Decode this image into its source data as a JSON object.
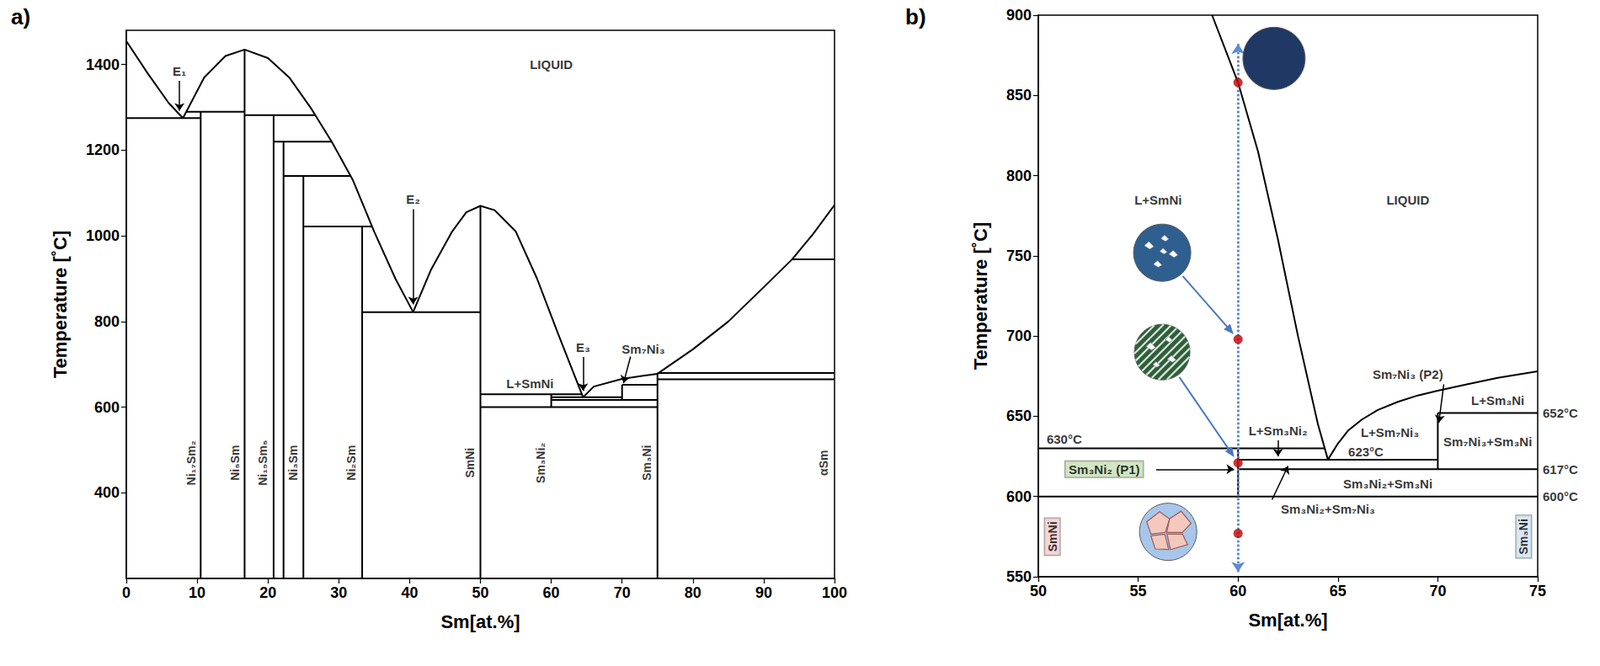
{
  "chart_data": [
    {
      "type": "line",
      "title": "a)",
      "x_label": "Sm[at.%]",
      "y_label": "Temperature [˚C]",
      "xlim": [
        0,
        100
      ],
      "ylim": [
        200,
        1480
      ],
      "xticks": [
        0,
        10,
        20,
        30,
        40,
        50,
        60,
        70,
        80,
        90,
        100
      ],
      "yticks": [
        400,
        600,
        800,
        1000,
        1200,
        1400
      ],
      "grid": false,
      "series": [
        {
          "type": "line",
          "color": "#000000",
          "x": [
            0,
            3,
            6,
            8,
            11,
            14,
            16.7,
            20,
            23,
            26,
            29,
            32,
            35,
            38,
            40.5,
            43,
            46,
            48,
            50,
            52,
            55,
            58,
            61,
            64.5,
            66,
            70,
            75,
            80,
            85,
            90,
            94,
            97,
            100
          ],
          "values": [
            1455,
            1380,
            1310,
            1275,
            1370,
            1420,
            1435,
            1415,
            1370,
            1300,
            1220,
            1130,
            1010,
            900,
            822,
            920,
            1010,
            1055,
            1070,
            1060,
            1010,
            900,
            770,
            623,
            648,
            666,
            678,
            735,
            800,
            880,
            945,
            1005,
            1072
          ]
        },
        {
          "type": "line",
          "color": "#000000",
          "x": [
            0,
            10.5,
            null,
            8.5,
            16.7,
            null,
            16.7,
            26.7,
            null,
            20.8,
            29,
            null,
            22.2,
            31.7,
            null,
            25,
            34.7,
            null,
            33.3,
            50,
            null,
            50,
            64.3,
            null,
            60,
            70,
            null,
            60,
            75,
            null,
            70,
            75,
            null,
            50,
            75,
            null,
            75,
            100,
            null,
            75,
            100,
            null,
            94,
            100,
            null,
            10.5,
            10.5,
            null,
            16.7,
            16.7,
            null,
            20.8,
            20.8,
            null,
            22.2,
            22.2,
            null,
            25,
            25,
            null,
            33.3,
            33.3,
            null,
            50,
            50,
            null,
            60,
            60,
            null,
            70,
            70,
            null,
            75,
            75
          ],
          "values": [
            1275,
            1275,
            null,
            1290,
            1290,
            null,
            1282,
            1282,
            null,
            1220,
            1220,
            null,
            1140,
            1140,
            null,
            1022,
            1022,
            null,
            822,
            822,
            null,
            630,
            630,
            null,
            623,
            623,
            null,
            617,
            617,
            null,
            652,
            652,
            null,
            600,
            600,
            null,
            680,
            680,
            null,
            665,
            665,
            null,
            945,
            945,
            null,
            200,
            1290,
            null,
            200,
            1435,
            null,
            200,
            1282,
            null,
            200,
            1220,
            null,
            200,
            1140,
            null,
            200,
            1022,
            null,
            200,
            1070,
            null,
            600,
            630,
            null,
            617,
            652,
            null,
            200,
            680
          ]
        }
      ],
      "annotations": [
        {
          "text": "LIQUID",
          "x": 60,
          "y": 1400
        },
        {
          "text": "E₁",
          "x": 7.5,
          "y": 1385
        },
        {
          "text": "E₂",
          "x": 40.5,
          "y": 1085
        },
        {
          "text": "E₃",
          "x": 64.5,
          "y": 740
        },
        {
          "text": "L+SmNi",
          "x": 57,
          "y": 655
        },
        {
          "text": "Sm₇Ni₃",
          "x": 73,
          "y": 735
        }
      ],
      "phase_labels": [
        {
          "text": "Ni₁₇Sm₂",
          "x": 9.2,
          "y": 470
        },
        {
          "text": "Ni₅Sm",
          "x": 15.3,
          "y": 470
        },
        {
          "text": "Ni₁₉Sm₅",
          "x": 19.3,
          "y": 470
        },
        {
          "text": "Ni₃Sm",
          "x": 23.6,
          "y": 470
        },
        {
          "text": "Ni₂Sm",
          "x": 31.8,
          "y": 470
        },
        {
          "text": "SmNi",
          "x": 48.5,
          "y": 470
        },
        {
          "text": "Sm₃Ni₂",
          "x": 58.5,
          "y": 470
        },
        {
          "text": "Sm₃Ni",
          "x": 73.5,
          "y": 470
        },
        {
          "text": "αSm",
          "x": 98.4,
          "y": 470
        }
      ],
      "arrows": [
        {
          "from": [
            7.5,
            1362
          ],
          "to": [
            7.5,
            1292
          ]
        },
        {
          "from": [
            40.5,
            1062
          ],
          "to": [
            40.5,
            840
          ]
        },
        {
          "from": [
            64.5,
            717
          ],
          "to": [
            64.5,
            638
          ]
        },
        {
          "from": [
            71.2,
            718
          ],
          "to": [
            70.2,
            656
          ]
        }
      ]
    },
    {
      "type": "line",
      "title": "b)",
      "x_label": "Sm[at.%]",
      "y_label": "Temperature [˚C]",
      "xlim": [
        50,
        75
      ],
      "ylim": [
        550,
        900
      ],
      "xticks": [
        50,
        55,
        60,
        65,
        70,
        75
      ],
      "yticks": [
        550,
        600,
        650,
        700,
        750,
        800,
        850,
        900
      ],
      "grid": false,
      "series": [
        {
          "type": "line",
          "color": "#000000",
          "x": [
            58.7,
            60,
            61,
            62,
            63,
            64,
            64.5,
            65,
            65.5,
            66.2,
            67,
            68,
            69,
            70,
            71.5,
            73,
            75
          ],
          "values": [
            900,
            858,
            815,
            760,
            700,
            645,
            623,
            633,
            641,
            648,
            654,
            659,
            663,
            666,
            670,
            674,
            678
          ]
        },
        {
          "type": "line",
          "color": "#000000",
          "x": [
            50,
            64.34,
            null,
            60,
            70,
            null,
            60,
            75,
            null,
            70,
            75,
            null,
            50,
            75,
            null,
            60,
            60,
            null,
            70,
            70
          ],
          "values": [
            630,
            630,
            null,
            623,
            623,
            null,
            617,
            617,
            null,
            652,
            652,
            null,
            600,
            600,
            null,
            600,
            630,
            null,
            617,
            652
          ]
        },
        {
          "type": "line",
          "color": "#5b8bd0",
          "line_style": "dotted",
          "marker": "arrow",
          "x": [
            60,
            60
          ],
          "values": [
            553,
            882
          ]
        },
        {
          "type": "scatter",
          "color": "#c00000",
          "x": [
            60,
            60,
            60,
            60
          ],
          "values": [
            858,
            698,
            621,
            577
          ]
        }
      ],
      "annotations": [
        {
          "text": "L+SmNi",
          "x": 56,
          "y": 785
        },
        {
          "text": "LIQUID",
          "x": 68.5,
          "y": 785
        },
        {
          "text": "L+Sm₃Ni₂",
          "x": 62,
          "y": 641
        },
        {
          "text": "L+Sm₇Ni₃",
          "x": 67.6,
          "y": 640
        },
        {
          "text": "Sm₇Ni₃ (P2)",
          "x": 68.5,
          "y": 676
        },
        {
          "text": "L+Sm₃Ni",
          "x": 73,
          "y": 660
        },
        {
          "text": "Sm₇Ni₃+Sm₃Ni",
          "x": 72.5,
          "y": 634
        },
        {
          "text": "Sm₃Ni₂+Sm₃Ni",
          "x": 67.5,
          "y": 608
        },
        {
          "text": "Sm₃Ni₂+Sm₇Ni₃",
          "x": 64.5,
          "y": 592
        },
        {
          "text": "Sm₃Ni₂ (P1)",
          "x": 53.3,
          "y": 617,
          "color": "#c6e0b4"
        },
        {
          "text": "630°C",
          "x": 51.3,
          "y": 636
        },
        {
          "text": "623°C",
          "x": 66.4,
          "y": 628
        },
        {
          "text": "652°C",
          "x": 75,
          "y": 652
        },
        {
          "text": "617°C",
          "x": 75,
          "y": 617
        },
        {
          "text": "600°C",
          "x": 75,
          "y": 600
        }
      ],
      "phase_labels": [
        {
          "text": "SmNi",
          "x": 50.7,
          "y": 575,
          "color": "#f4cccc"
        },
        {
          "text": "Sm₃Ni",
          "x": 74.3,
          "y": 575,
          "color": "#cfe2f3"
        }
      ],
      "arrows": [
        {
          "from": [
            62,
            635
          ],
          "to": [
            62,
            625
          ]
        },
        {
          "from": [
            55.9,
            617
          ],
          "to": [
            59.8,
            617
          ]
        },
        {
          "from": [
            61.7,
            598
          ],
          "to": [
            62.5,
            619
          ]
        },
        {
          "from": [
            70.3,
            670
          ],
          "to": [
            70.05,
            646
          ]
        }
      ]
    }
  ]
}
